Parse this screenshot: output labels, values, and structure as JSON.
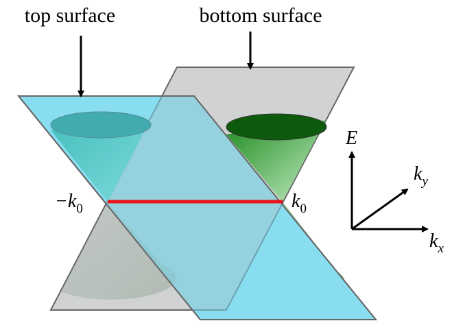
{
  "labels": {
    "top_surface": "top surface",
    "bottom_surface": "bottom surface"
  },
  "axes": {
    "E": "E",
    "ky": {
      "base": "k",
      "sub": "y"
    },
    "kx": {
      "base": "k",
      "sub": "x"
    }
  },
  "points": {
    "minus_k0": {
      "base": "−k",
      "sub": "0"
    },
    "k0": {
      "base": "k",
      "sub": "0"
    }
  }
}
